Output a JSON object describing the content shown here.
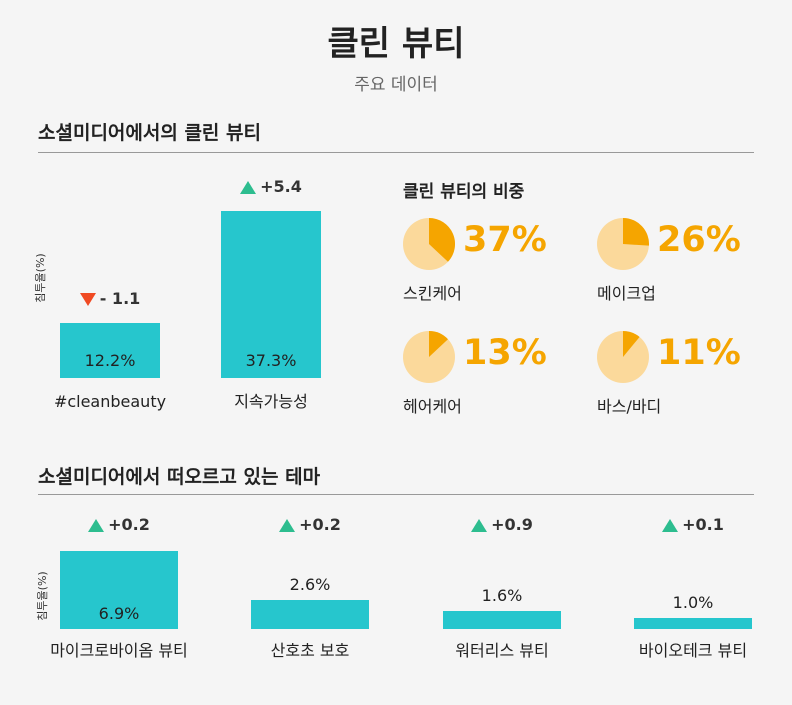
{
  "title": "클린 뷰티",
  "subtitle": "주요 데이터",
  "section1": {
    "title": "소셜미디어에서의 클린 뷰티"
  },
  "section2": {
    "title": "소셜미디어에서 떠오르고 있는 테마"
  },
  "colors": {
    "bar": "#26c6cd",
    "up": "#2dbd8f",
    "down": "#f04a23",
    "pie_fill": "#f5a500",
    "pie_bg": "#fbd99b"
  },
  "chart_data": [
    {
      "type": "bar",
      "ylabel": "침투율(%)",
      "categories": [
        "#cleanbeauty",
        "지속가능성"
      ],
      "values": [
        12.2,
        37.3
      ],
      "value_labels": [
        "12.2%",
        "37.3%"
      ],
      "changes": [
        {
          "direction": "down",
          "text": "- 1.1",
          "value": -1.1
        },
        {
          "direction": "up",
          "text": "+5.4",
          "value": 5.4
        }
      ]
    },
    {
      "type": "pie",
      "title": "클린 뷰티의 비중",
      "categories": [
        "스킨케어",
        "메이크업",
        "헤어케어",
        "바스/바디"
      ],
      "values": [
        37,
        26,
        13,
        11
      ],
      "value_labels": [
        "37%",
        "26%",
        "13%",
        "11%"
      ]
    },
    {
      "type": "bar",
      "ylabel": "침투율(%)",
      "categories": [
        "마이크로바이옴 뷰티",
        "산호초 보호",
        "워터리스 뷰티",
        "바이오테크 뷰티"
      ],
      "values": [
        6.9,
        2.6,
        1.6,
        1.0
      ],
      "value_labels": [
        "6.9%",
        "2.6%",
        "1.6%",
        "1.0%"
      ],
      "changes": [
        {
          "direction": "up",
          "text": "+0.2",
          "value": 0.2
        },
        {
          "direction": "up",
          "text": "+0.2",
          "value": 0.2
        },
        {
          "direction": "up",
          "text": "+0.9",
          "value": 0.9
        },
        {
          "direction": "up",
          "text": "+0.1",
          "value": 0.1
        }
      ]
    }
  ]
}
